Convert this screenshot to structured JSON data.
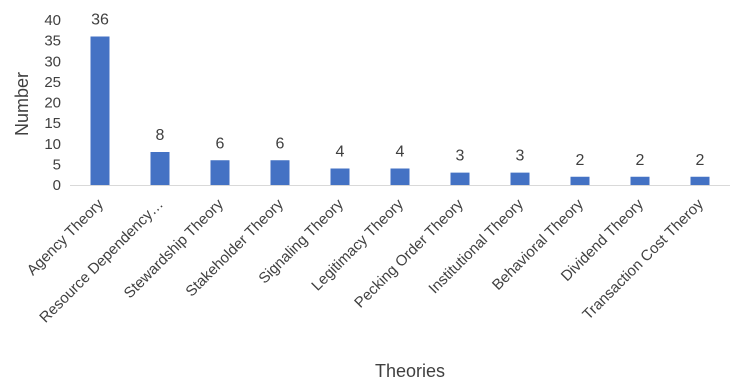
{
  "chart_data": {
    "type": "bar",
    "title": "",
    "xlabel": "Theories",
    "ylabel": "Number",
    "ylim": [
      0,
      40
    ],
    "yticks": [
      0,
      5,
      10,
      15,
      20,
      25,
      30,
      35,
      40
    ],
    "grid": false,
    "legend": "none",
    "bar_color": "#4472C4",
    "categories": [
      "Agency Theory",
      "Resource Dependency…",
      "Stewardship Theory",
      "Stakeholder Theory",
      "Signaling Theory",
      "Legitimacy Theory",
      "Pecking Order Theory",
      "Institutional Theory",
      "Behavioral Theory",
      "Dividend Theory",
      "Transaction Cost Theroy"
    ],
    "values": [
      36,
      8,
      6,
      6,
      4,
      4,
      3,
      3,
      2,
      2,
      2
    ],
    "data_labels": [
      "36",
      "8",
      "6",
      "6",
      "4",
      "4",
      "3",
      "3",
      "2",
      "2",
      "2"
    ]
  }
}
